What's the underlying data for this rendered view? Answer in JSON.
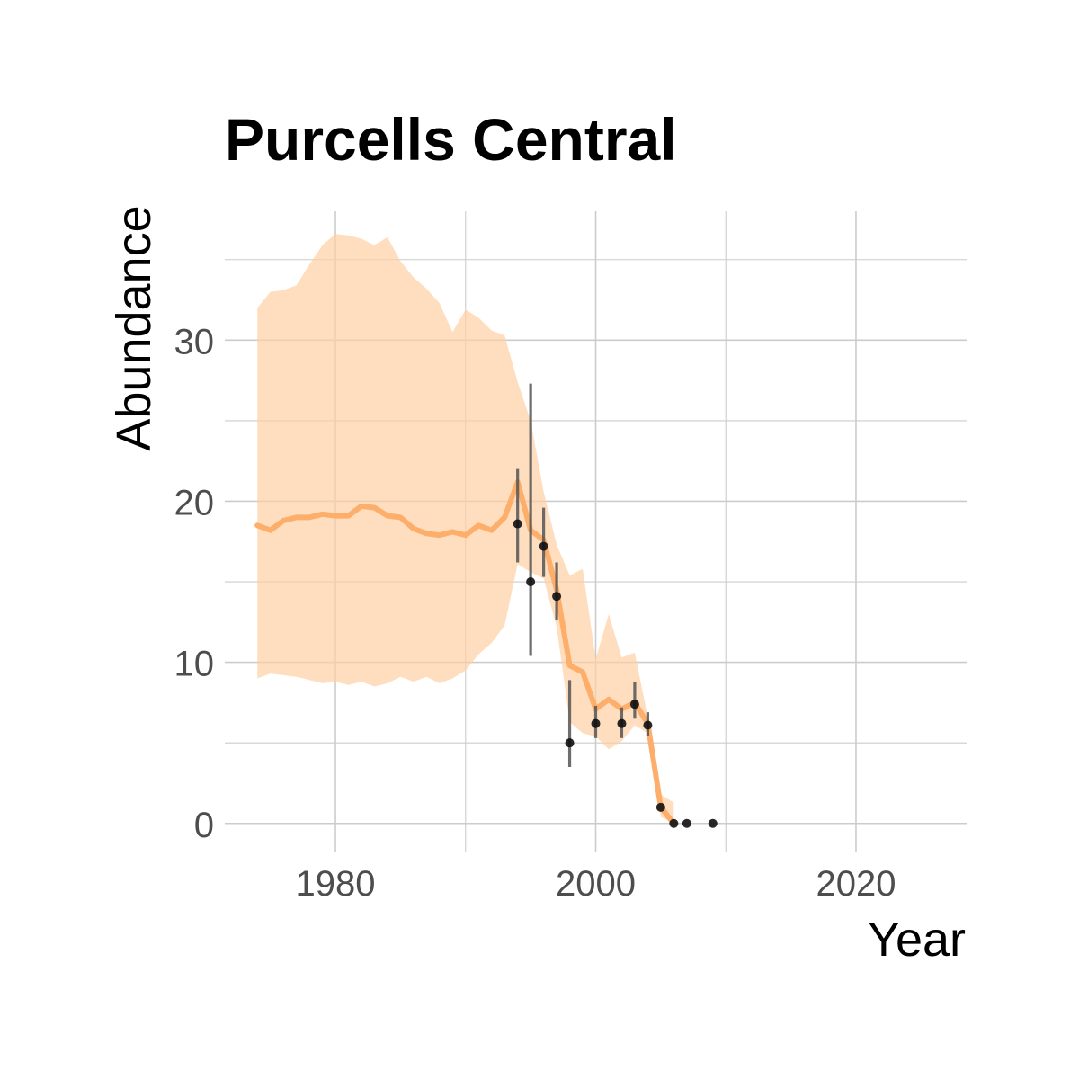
{
  "chart_data": {
    "type": "line",
    "title": "Purcells Central",
    "xlabel": "Year",
    "ylabel": "Abundance",
    "xlim": [
      1971.5,
      2028.5
    ],
    "ylim": [
      -1.8,
      38
    ],
    "x_ticks": [
      1980,
      2000,
      2020
    ],
    "x_tick_labels": [
      "1980",
      "2000",
      "2020"
    ],
    "x_minor_ticks": [
      1990,
      2010
    ],
    "y_ticks": [
      0,
      10,
      20,
      30
    ],
    "y_tick_labels": [
      "0",
      "10",
      "20",
      "30"
    ],
    "y_minor_ticks": [
      5,
      15,
      25,
      35
    ],
    "grid": true,
    "legend": "none",
    "colors": {
      "line": "#fdae6b",
      "ribbon": "#fdd0a2",
      "points": "#111111",
      "errorbars": "#555555",
      "grid": "#cccccc"
    },
    "series": [
      {
        "type": "line",
        "x": [
          1974,
          1975,
          1976,
          1977,
          1978,
          1979,
          1980,
          1981,
          1982,
          1983,
          1984,
          1985,
          1986,
          1987,
          1988,
          1989,
          1990,
          1991,
          1992,
          1993,
          1994,
          1995,
          1996,
          1997,
          1998,
          1999,
          2000,
          2001,
          2002,
          2003,
          2004,
          2005,
          2006
        ],
        "y": [
          18.5,
          18.2,
          18.8,
          19.0,
          19.0,
          19.2,
          19.1,
          19.1,
          19.7,
          19.6,
          19.1,
          19.0,
          18.3,
          18.0,
          17.9,
          18.1,
          17.9,
          18.5,
          18.2,
          19.0,
          21.2,
          18.2,
          17.6,
          14.5,
          9.8,
          9.4,
          7.1,
          7.7,
          7.1,
          7.5,
          6.2,
          1.0,
          0.0
        ]
      },
      {
        "type": "ribbon",
        "x": [
          1974,
          1975,
          1976,
          1977,
          1978,
          1979,
          1980,
          1981,
          1982,
          1983,
          1984,
          1985,
          1986,
          1987,
          1988,
          1989,
          1990,
          1991,
          1992,
          1993,
          1994,
          1995,
          1996,
          1997,
          1998,
          1999,
          2000,
          2001,
          2002,
          2003,
          2004,
          2005,
          2006
        ],
        "lower": [
          9.0,
          9.3,
          9.2,
          9.1,
          8.9,
          8.7,
          8.8,
          8.6,
          8.8,
          8.5,
          8.7,
          9.1,
          8.8,
          9.1,
          8.7,
          9.0,
          9.5,
          10.5,
          11.2,
          12.3,
          16.1,
          15.6,
          15.2,
          12.2,
          6.3,
          5.6,
          5.4,
          4.6,
          5.1,
          6.1,
          5.6,
          0.4,
          0.0
        ],
        "upper": [
          32.0,
          33.0,
          33.1,
          33.4,
          34.7,
          35.9,
          36.6,
          36.5,
          36.3,
          35.9,
          36.4,
          34.9,
          33.9,
          33.2,
          32.3,
          30.5,
          31.9,
          31.4,
          30.6,
          30.3,
          27.4,
          25.0,
          20.6,
          17.3,
          15.4,
          15.8,
          10.2,
          13.0,
          10.3,
          10.6,
          6.6,
          1.8,
          1.3
        ]
      },
      {
        "type": "points",
        "x": [
          1994,
          1995,
          1996,
          1997,
          1998,
          2000,
          2002,
          2003,
          2004,
          2005,
          2006,
          2007,
          2009
        ],
        "y": [
          18.6,
          15.0,
          17.2,
          14.1,
          5.0,
          6.2,
          6.2,
          7.4,
          6.1,
          1.0,
          0.0,
          0.0,
          0.0
        ],
        "err_low": [
          16.2,
          10.4,
          15.3,
          12.6,
          3.5,
          5.3,
          5.3,
          6.5,
          5.4,
          1.0,
          0.0,
          0.0,
          0.0
        ],
        "err_high": [
          22.0,
          27.3,
          19.6,
          16.2,
          8.9,
          7.3,
          7.2,
          8.8,
          6.9,
          1.0,
          0.0,
          0.0,
          0.0
        ]
      }
    ]
  }
}
